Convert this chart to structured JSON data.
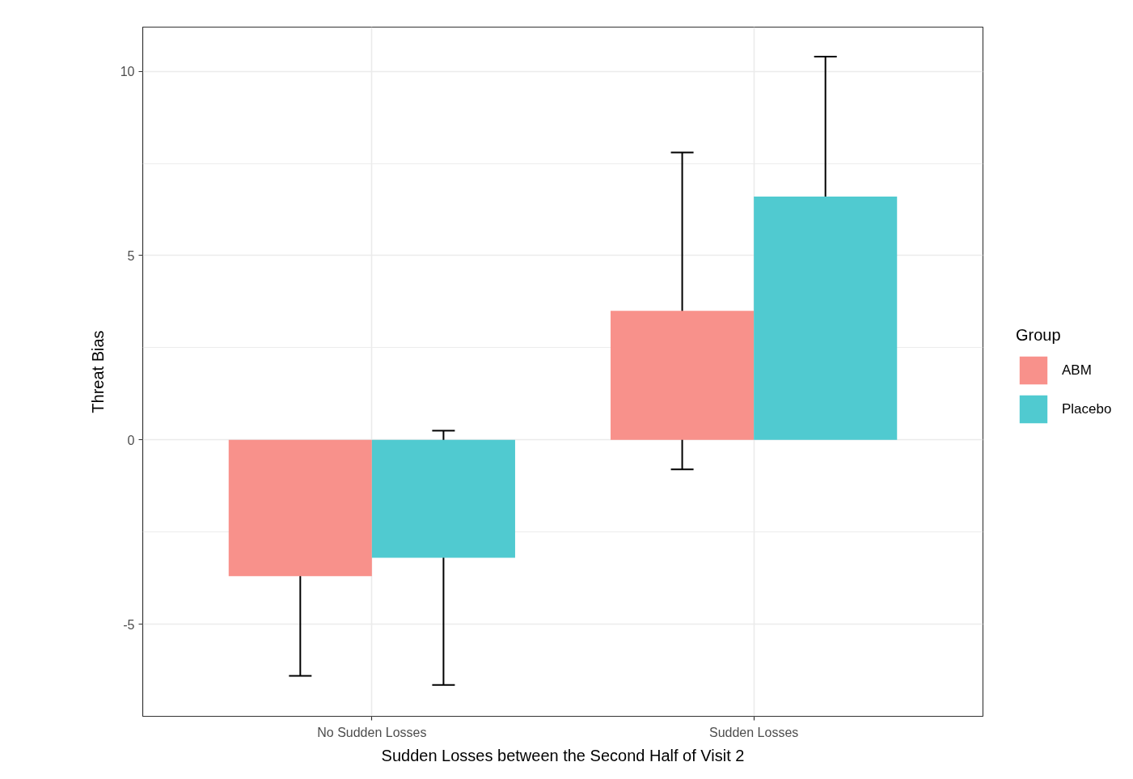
{
  "chart_data": {
    "type": "bar",
    "categories": [
      "No Sudden Losses",
      "Sudden Losses"
    ],
    "series": [
      {
        "name": "ABM",
        "color": "#f8918b",
        "values": [
          -3.7,
          3.5
        ],
        "errors": [
          2.7,
          4.3
        ]
      },
      {
        "name": "Placebo",
        "color": "#50cad0",
        "values": [
          -3.2,
          6.6
        ],
        "errors": [
          3.45,
          3.8
        ]
      }
    ],
    "xlabel": "Sudden Losses between the Second Half of Visit 2",
    "ylabel": "Threat Bias",
    "legend_title": "Group",
    "ylim": [
      -7.5,
      11.2
    ],
    "yticks": [
      -5,
      0,
      5,
      10
    ],
    "grid": true,
    "legend": "right"
  }
}
